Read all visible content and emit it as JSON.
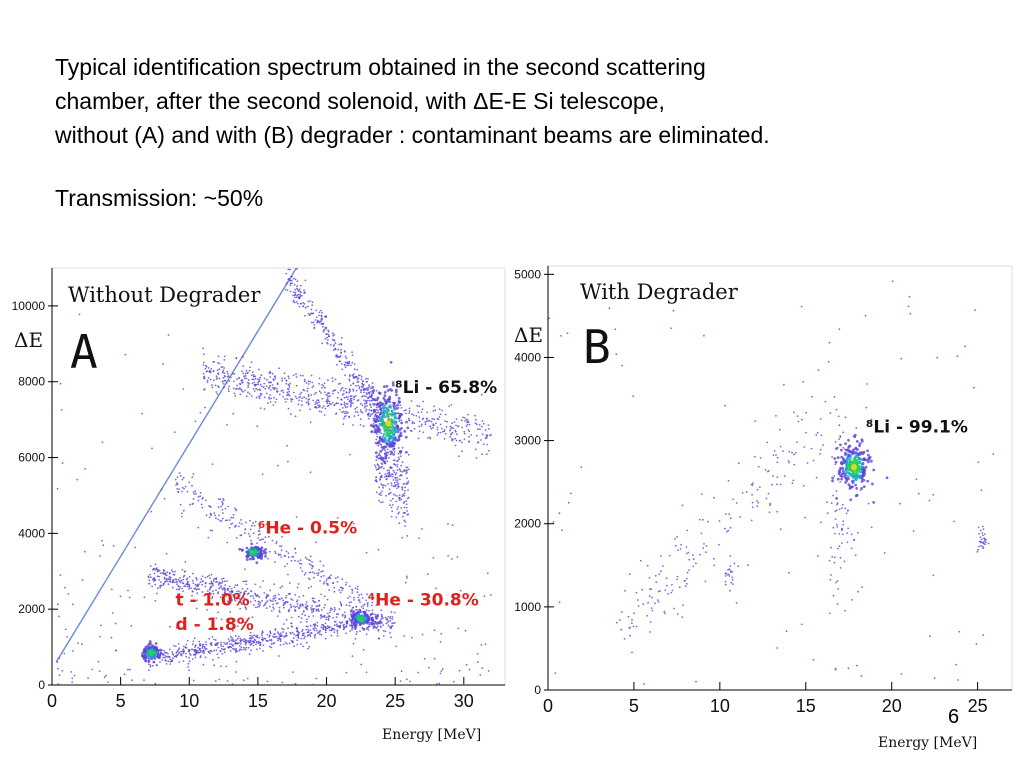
{
  "caption": {
    "line1": "Typical identification spectrum obtained  in the second scattering",
    "line2": "chamber, after the second solenoid, with ΔE-E Si telescope,",
    "line3": "without (A) and with (B) degrader : contaminant beams are eliminated."
  },
  "transmission": "Transmission: ~50%",
  "page_number": "6",
  "colors": {
    "scatter": "#5a44d8",
    "hot": "#1fd64a",
    "label_red": "#e0201b"
  },
  "chart_data": [
    {
      "type": "scatter",
      "title": "Without Degrader",
      "panel_letter": "A",
      "ylabel": "ΔE",
      "xlabel": "Energy [MeV]",
      "xlim": [
        0,
        33
      ],
      "ylim": [
        0,
        11000
      ],
      "xticks": [
        "0",
        "5",
        "10",
        "15",
        "20",
        "25",
        "30"
      ],
      "yticks": [
        "0",
        "2000",
        "4000",
        "6000",
        "8000",
        "10000"
      ],
      "annotations": [
        {
          "text": "⁸Li - 65.8%",
          "color": "black",
          "x": 25,
          "y": 7700
        },
        {
          "text": "⁶He - 0.5%",
          "color": "red",
          "x": 15,
          "y": 4000
        },
        {
          "text": "⁴He - 30.8%",
          "color": "red",
          "x": 23,
          "y": 2100
        },
        {
          "text": "t - 1.0%",
          "color": "red",
          "x": 9,
          "y": 2100
        },
        {
          "text": "d - 1.8%",
          "color": "red",
          "x": 9,
          "y": 1450
        }
      ],
      "clusters": [
        {
          "name": "⁸Li",
          "x": 24.5,
          "y": 6900
        },
        {
          "name": "⁶He",
          "x": 14.7,
          "y": 3500
        },
        {
          "name": "⁴He",
          "x": 22.5,
          "y": 1750
        },
        {
          "name": "d",
          "x": 7.3,
          "y": 850
        }
      ]
    },
    {
      "type": "scatter",
      "title": "With Degrader",
      "panel_letter": "B",
      "ylabel": "ΔE",
      "xlabel": "Energy [MeV]",
      "xlim": [
        0,
        27
      ],
      "ylim": [
        0,
        5100
      ],
      "xticks": [
        "0",
        "5",
        "10",
        "15",
        "20",
        "25"
      ],
      "yticks": [
        "0",
        "1000",
        "2000",
        "3000",
        "4000",
        "5000"
      ],
      "annotations": [
        {
          "text": "⁸Li - 99.1%",
          "color": "black",
          "x": 18.5,
          "y": 3100
        }
      ],
      "clusters": [
        {
          "name": "⁸Li",
          "x": 17.8,
          "y": 2680
        }
      ]
    }
  ]
}
